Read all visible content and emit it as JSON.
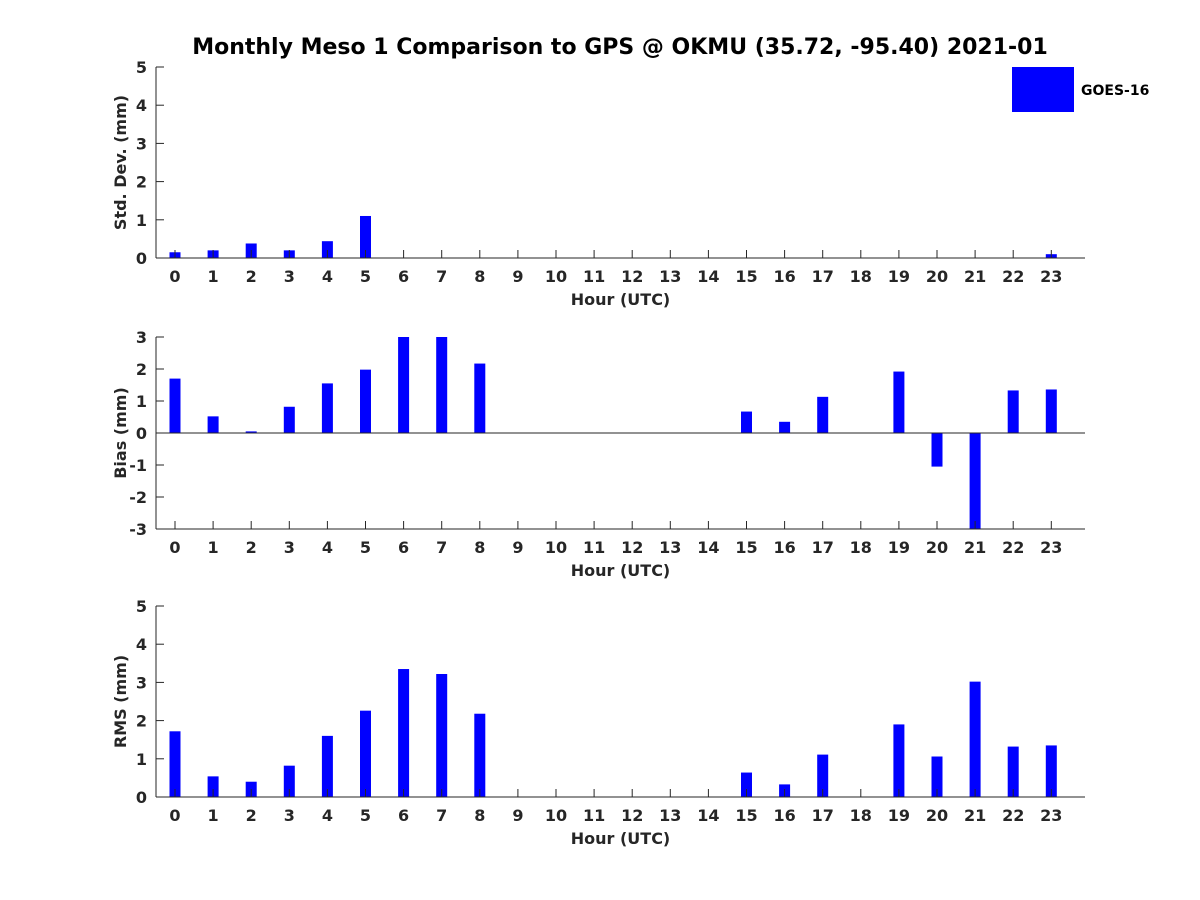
{
  "title": "Monthly Meso 1 Comparison to GPS @ OKMU (35.72, -95.40) 2021-01",
  "legend": {
    "label": "GOES-16",
    "color": "#0000ff"
  },
  "chart_data": [
    {
      "type": "bar",
      "ylabel": "Std. Dev. (mm)",
      "xlabel": "Hour (UTC)",
      "ylim": [
        0,
        5
      ],
      "yticks": [
        "0",
        "1",
        "2",
        "3",
        "4",
        "5"
      ],
      "categories": [
        "0",
        "1",
        "2",
        "3",
        "4",
        "5",
        "6",
        "7",
        "8",
        "9",
        "10",
        "11",
        "12",
        "13",
        "14",
        "15",
        "16",
        "17",
        "18",
        "19",
        "20",
        "21",
        "22",
        "23"
      ],
      "series": [
        {
          "name": "GOES-16",
          "values": [
            0.15,
            0.2,
            0.38,
            0.2,
            0.44,
            1.1,
            null,
            null,
            null,
            null,
            null,
            null,
            null,
            null,
            null,
            null,
            null,
            null,
            null,
            null,
            null,
            null,
            null,
            0.1
          ]
        }
      ]
    },
    {
      "type": "bar",
      "ylabel": "Bias (mm)",
      "xlabel": "Hour (UTC)",
      "ylim": [
        -3,
        3
      ],
      "yticks": [
        "-3",
        "-2",
        "-1",
        "0",
        "1",
        "2",
        "3"
      ],
      "categories": [
        "0",
        "1",
        "2",
        "3",
        "4",
        "5",
        "6",
        "7",
        "8",
        "9",
        "10",
        "11",
        "12",
        "13",
        "14",
        "15",
        "16",
        "17",
        "18",
        "19",
        "20",
        "21",
        "22",
        "23"
      ],
      "series": [
        {
          "name": "GOES-16",
          "values": [
            1.7,
            0.52,
            0.05,
            0.82,
            1.55,
            1.98,
            3.0,
            3.0,
            2.17,
            null,
            null,
            null,
            null,
            null,
            null,
            0.67,
            0.35,
            1.13,
            null,
            1.92,
            -1.05,
            -3.0,
            1.33,
            1.36
          ]
        }
      ]
    },
    {
      "type": "bar",
      "ylabel": "RMS (mm)",
      "xlabel": "Hour (UTC)",
      "ylim": [
        0,
        5
      ],
      "yticks": [
        "0",
        "1",
        "2",
        "3",
        "4",
        "5"
      ],
      "categories": [
        "0",
        "1",
        "2",
        "3",
        "4",
        "5",
        "6",
        "7",
        "8",
        "9",
        "10",
        "11",
        "12",
        "13",
        "14",
        "15",
        "16",
        "17",
        "18",
        "19",
        "20",
        "21",
        "22",
        "23"
      ],
      "series": [
        {
          "name": "GOES-16",
          "values": [
            1.72,
            0.54,
            0.4,
            0.82,
            1.6,
            2.26,
            3.35,
            3.22,
            2.18,
            null,
            null,
            null,
            null,
            null,
            null,
            0.64,
            0.33,
            1.11,
            null,
            1.9,
            1.06,
            3.02,
            1.32,
            1.35
          ]
        }
      ]
    }
  ]
}
